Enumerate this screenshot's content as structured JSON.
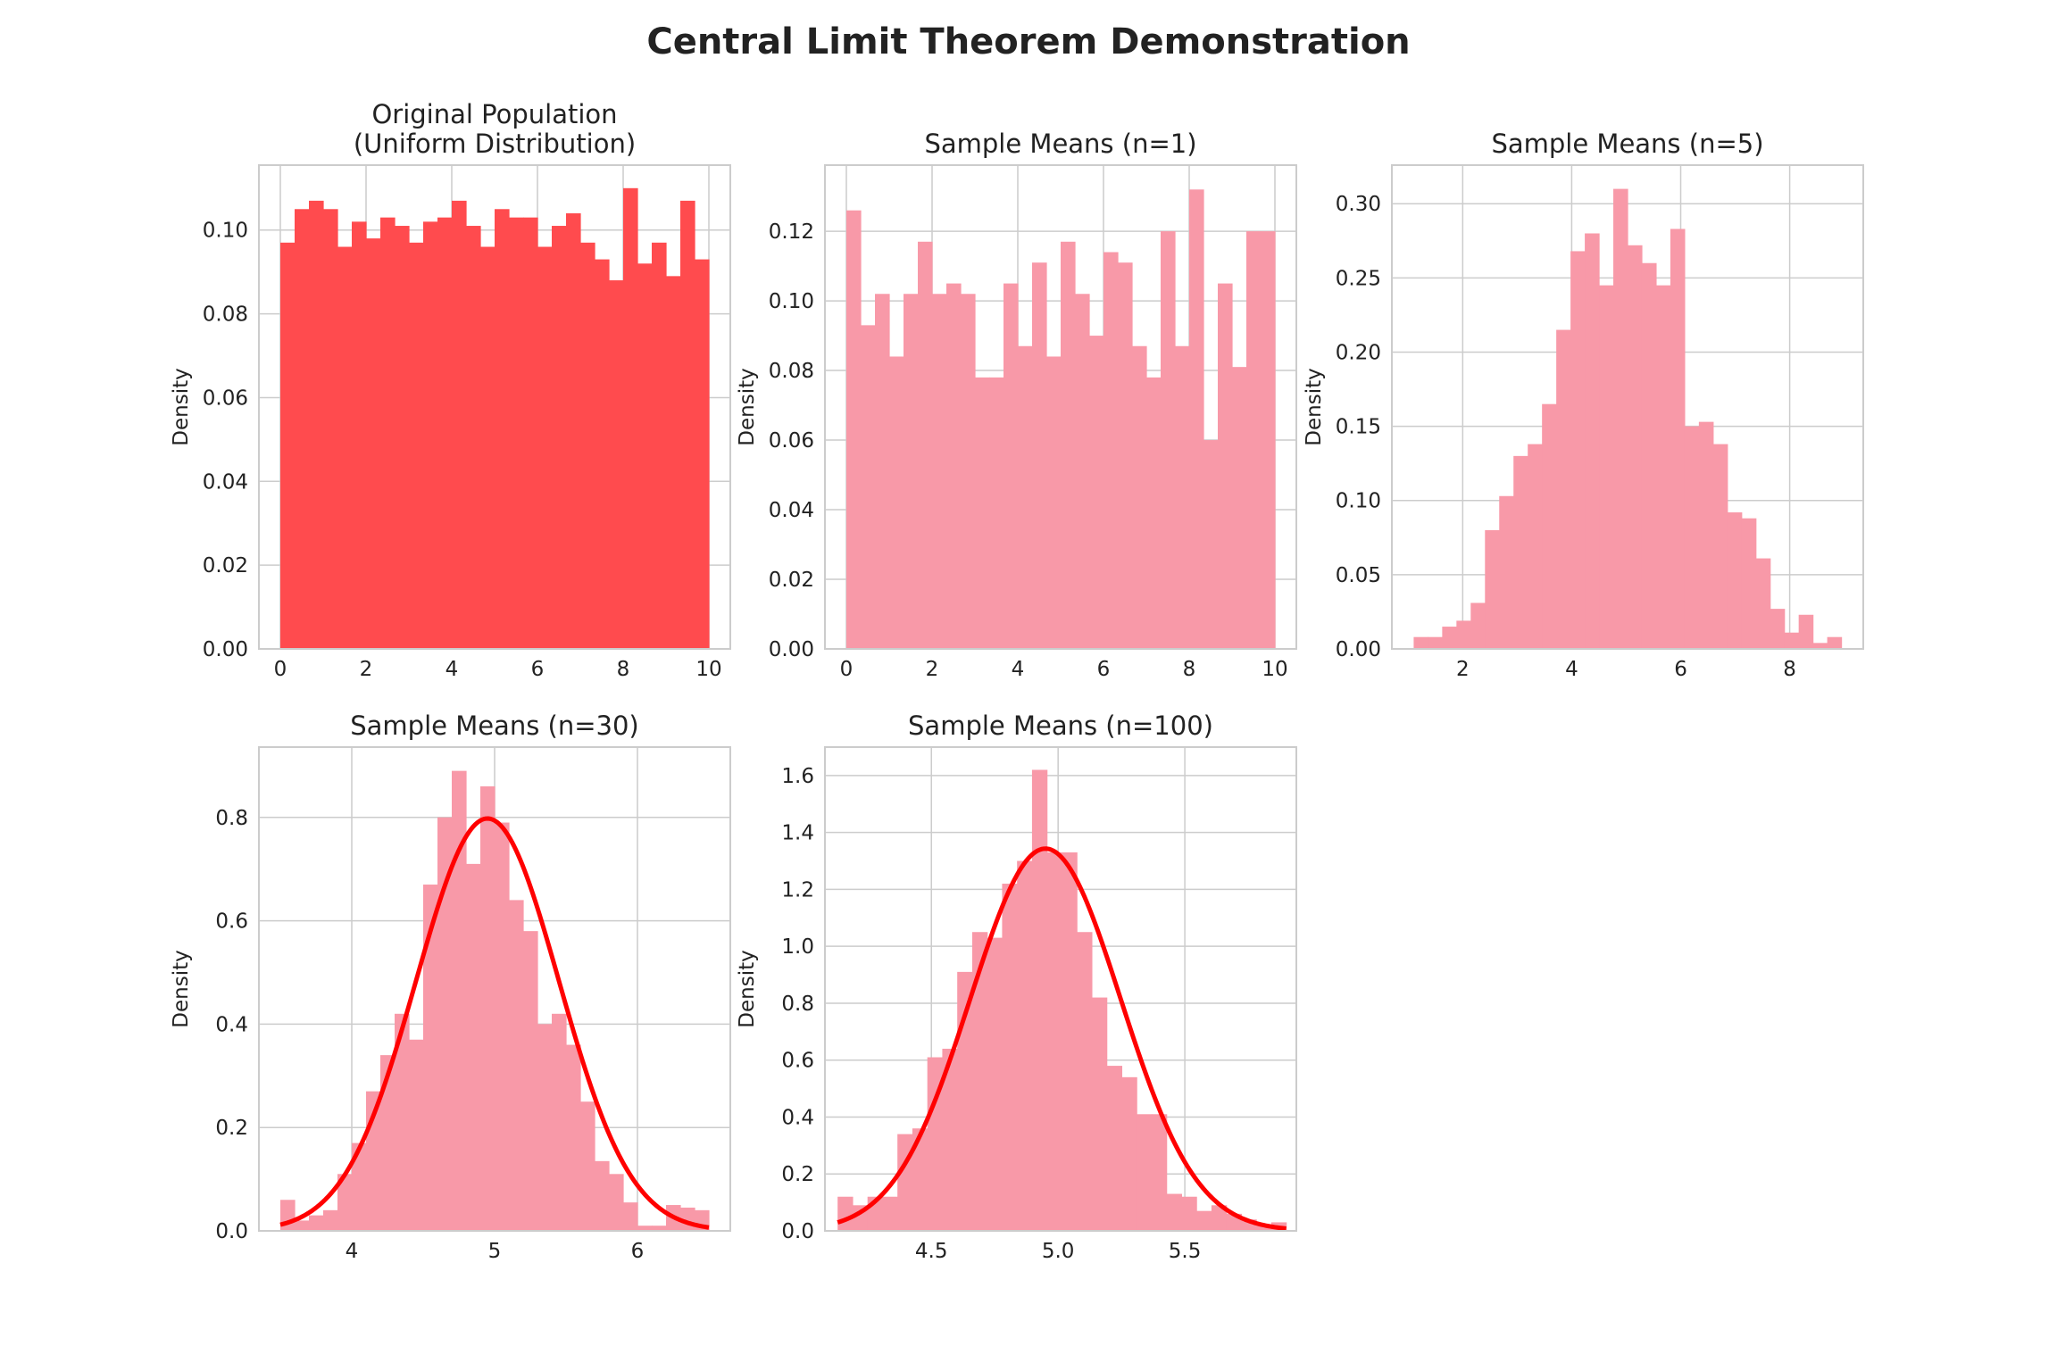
{
  "figure": {
    "title": "Central Limit Theorem Demonstration",
    "colors": {
      "population": "#ff4b4e",
      "samples": "#f899a8",
      "normal_curve": "#ff0000",
      "grid": "#cccccc"
    }
  },
  "chart_data": [
    {
      "type": "bar",
      "title_lines": [
        "Original Population",
        "(Uniform Distribution)"
      ],
      "xlabel": "",
      "ylabel": "Density",
      "xlim": [
        -0.5,
        10.5
      ],
      "ylim": [
        0,
        0.1155
      ],
      "xticks": [
        0,
        2,
        4,
        6,
        8,
        10
      ],
      "xtick_labels": [
        "0",
        "2",
        "4",
        "6",
        "8",
        "10"
      ],
      "yticks": [
        0,
        0.02,
        0.04,
        0.06,
        0.08,
        0.1
      ],
      "ytick_labels": [
        "0.00",
        "0.02",
        "0.04",
        "0.06",
        "0.08",
        "0.10"
      ],
      "bin_range": [
        0,
        10
      ],
      "bar_color": "#ff4b4e",
      "values": [
        0.097,
        0.105,
        0.107,
        0.105,
        0.096,
        0.102,
        0.098,
        0.103,
        0.101,
        0.097,
        0.102,
        0.103,
        0.107,
        0.101,
        0.096,
        0.105,
        0.103,
        0.103,
        0.096,
        0.101,
        0.104,
        0.097,
        0.093,
        0.088,
        0.11,
        0.092,
        0.097,
        0.089,
        0.107,
        0.093
      ],
      "normal_fit": null
    },
    {
      "type": "bar",
      "title_lines": [
        "Sample Means (n=1)"
      ],
      "xlabel": "",
      "ylabel": "Density",
      "xlim": [
        -0.5,
        10.5
      ],
      "ylim": [
        0,
        0.139
      ],
      "xticks": [
        0,
        2,
        4,
        6,
        8,
        10
      ],
      "xtick_labels": [
        "0",
        "2",
        "4",
        "6",
        "8",
        "10"
      ],
      "yticks": [
        0,
        0.02,
        0.04,
        0.06,
        0.08,
        0.1,
        0.12
      ],
      "ytick_labels": [
        "0.00",
        "0.02",
        "0.04",
        "0.06",
        "0.08",
        "0.10",
        "0.12"
      ],
      "bin_range": [
        0,
        10
      ],
      "bar_color": "#f899a8",
      "values": [
        0.126,
        0.093,
        0.102,
        0.084,
        0.102,
        0.117,
        0.102,
        0.105,
        0.102,
        0.078,
        0.078,
        0.105,
        0.087,
        0.111,
        0.084,
        0.117,
        0.102,
        0.09,
        0.114,
        0.111,
        0.087,
        0.078,
        0.12,
        0.087,
        0.132,
        0.06,
        0.105,
        0.081,
        0.12,
        0.12
      ],
      "normal_fit": null
    },
    {
      "type": "bar",
      "title_lines": [
        "Sample Means (n=5)"
      ],
      "xlabel": "",
      "ylabel": "Density",
      "xlim": [
        0.7,
        9.35
      ],
      "ylim": [
        0,
        0.326
      ],
      "xticks": [
        2,
        4,
        6,
        8
      ],
      "xtick_labels": [
        "2",
        "4",
        "6",
        "8"
      ],
      "yticks": [
        0,
        0.05,
        0.1,
        0.15,
        0.2,
        0.25,
        0.3
      ],
      "ytick_labels": [
        "0.00",
        "0.05",
        "0.10",
        "0.15",
        "0.20",
        "0.25",
        "0.30"
      ],
      "bin_range": [
        1.1,
        8.95
      ],
      "bar_color": "#f899a8",
      "values": [
        0.008,
        0.008,
        0.015,
        0.019,
        0.031,
        0.08,
        0.103,
        0.13,
        0.138,
        0.165,
        0.215,
        0.268,
        0.28,
        0.245,
        0.31,
        0.272,
        0.26,
        0.245,
        0.283,
        0.15,
        0.153,
        0.138,
        0.092,
        0.088,
        0.061,
        0.027,
        0.011,
        0.023,
        0.004,
        0.008
      ],
      "normal_fit": null
    },
    {
      "type": "bar",
      "title_lines": [
        "Sample Means (n=30)"
      ],
      "xlabel": "",
      "ylabel": "Density",
      "xlim": [
        3.35,
        6.65
      ],
      "ylim": [
        0,
        0.936
      ],
      "xticks": [
        4,
        5,
        6
      ],
      "xtick_labels": [
        "4",
        "5",
        "6"
      ],
      "yticks": [
        0,
        0.2,
        0.4,
        0.6,
        0.8
      ],
      "ytick_labels": [
        "0.0",
        "0.2",
        "0.4",
        "0.6",
        "0.8"
      ],
      "bin_range": [
        3.5,
        6.5
      ],
      "bar_color": "#f899a8",
      "values": [
        0.06,
        0.02,
        0.03,
        0.04,
        0.11,
        0.17,
        0.27,
        0.34,
        0.42,
        0.37,
        0.67,
        0.8,
        0.89,
        0.71,
        0.86,
        0.79,
        0.64,
        0.58,
        0.4,
        0.42,
        0.36,
        0.25,
        0.135,
        0.11,
        0.055,
        0.01,
        0.01,
        0.05,
        0.045,
        0.04
      ],
      "normal_fit": {
        "mean": 4.95,
        "std": 0.5
      }
    },
    {
      "type": "bar",
      "title_lines": [
        "Sample Means (n=100)"
      ],
      "xlabel": "",
      "ylabel": "Density",
      "xlim": [
        4.08,
        5.94
      ],
      "ylim": [
        0,
        1.7
      ],
      "xticks": [
        4.5,
        5.0,
        5.5
      ],
      "xtick_labels": [
        "4.5",
        "5.0",
        "5.5"
      ],
      "yticks": [
        0,
        0.2,
        0.4,
        0.6,
        0.8,
        1.0,
        1.2,
        1.4,
        1.6
      ],
      "ytick_labels": [
        "0.0",
        "0.2",
        "0.4",
        "0.6",
        "0.8",
        "1.0",
        "1.2",
        "1.4",
        "1.6"
      ],
      "bin_range": [
        4.13,
        5.9
      ],
      "bar_color": "#f899a8",
      "values": [
        0.12,
        0.09,
        0.12,
        0.12,
        0.34,
        0.36,
        0.61,
        0.64,
        0.91,
        1.05,
        1.03,
        1.22,
        1.3,
        1.62,
        1.33,
        1.33,
        1.05,
        0.82,
        0.58,
        0.54,
        0.41,
        0.41,
        0.13,
        0.12,
        0.07,
        0.09,
        0.06,
        0.04,
        0.02,
        0.03
      ],
      "normal_fit": {
        "mean": 4.95,
        "std": 0.297
      }
    }
  ]
}
